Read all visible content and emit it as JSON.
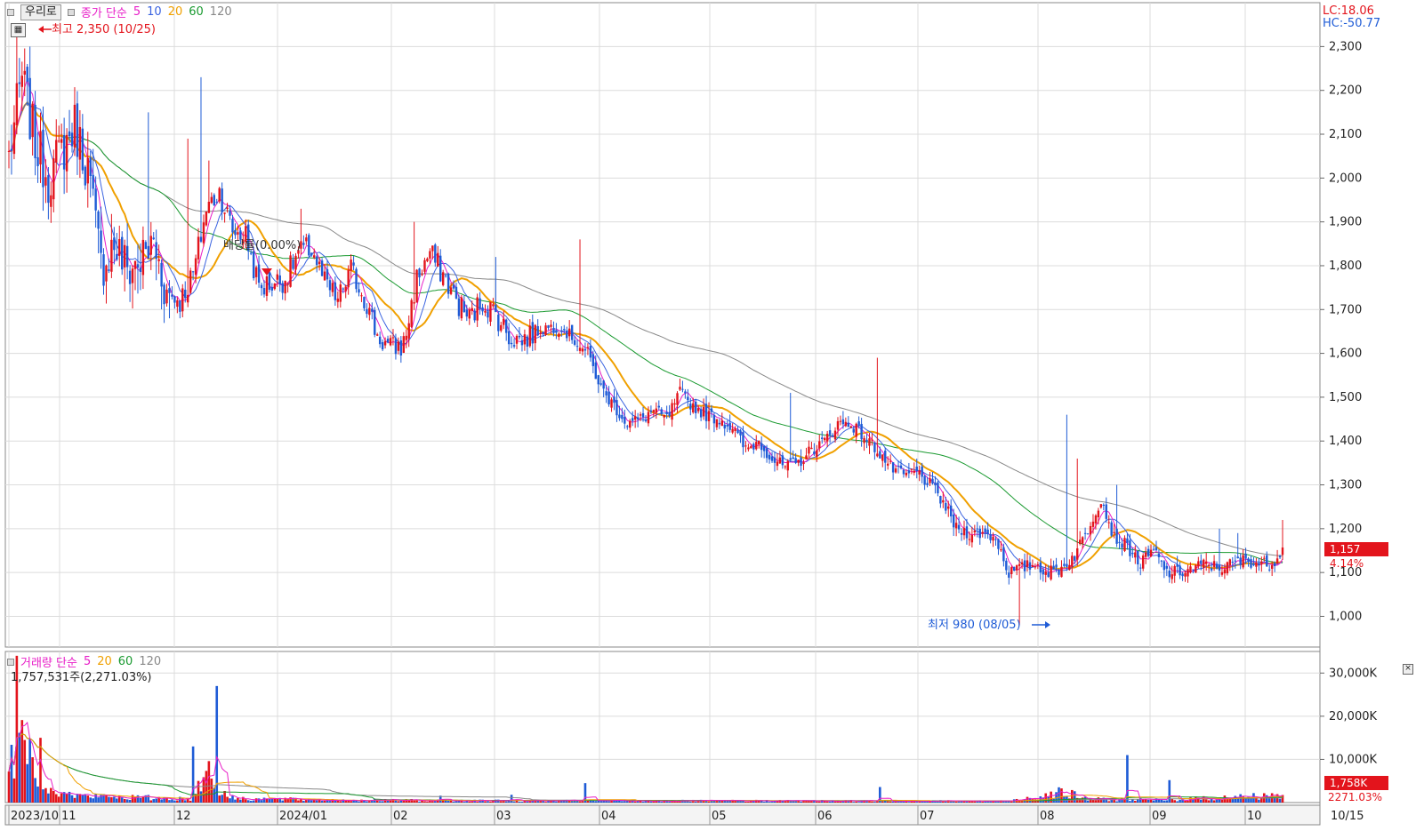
{
  "toolbar": {
    "name_button": "우리로"
  },
  "price_legend": {
    "label": "종가 단순",
    "p1": "5",
    "p2": "10",
    "p3": "20",
    "p4": "60",
    "p5": "120"
  },
  "volume_legend": {
    "label": "거래량 단순",
    "p1": "5",
    "p2": "20",
    "p3": "60",
    "p4": "120"
  },
  "volume_info": "1,757,531주(2,271.03%)",
  "high_label": "최고 2,350 (10/25)",
  "low_label": "최저 980 (08/05)",
  "dividend_label": "배당률(0.00%)",
  "lc_label": "LC:18.06",
  "hc_label": "HC:-50.77",
  "current_price": "1,157",
  "current_change": "4.14%",
  "current_volume": "1,758K",
  "current_volume_pct": "2271.03%",
  "colors": {
    "up": "#e3141c",
    "down": "#1e5bd6",
    "ma5": "#e81ec8",
    "ma10": "#3a63e0",
    "ma20": "#f0a000",
    "ma60": "#1a9a30",
    "ma120": "#888888"
  },
  "chart_data": [
    {
      "type": "candlestick",
      "ylim": [
        930,
        2390
      ],
      "yticks": [
        1000,
        1100,
        1200,
        1300,
        1400,
        1500,
        1600,
        1700,
        1800,
        1900,
        2000,
        2100,
        2200,
        2300
      ],
      "ytick_labels": [
        "1,000",
        "1,100",
        "1,200",
        "1,300",
        "1,400",
        "1,500",
        "1,600",
        "1,700",
        "1,800",
        "1,900",
        "2,000",
        "2,100",
        "2,200",
        "2,300"
      ],
      "x_labels": [
        "2023/10",
        "11",
        "12",
        "2024/01",
        "02",
        "03",
        "04",
        "05",
        "06",
        "07",
        "08",
        "09",
        "10",
        "10/15"
      ],
      "anchors": [
        [
          0,
          2050
        ],
        [
          5,
          2230
        ],
        [
          10,
          2080
        ],
        [
          15,
          2000
        ],
        [
          20,
          2060
        ],
        [
          25,
          2120
        ],
        [
          30,
          2020
        ],
        [
          35,
          1800
        ],
        [
          40,
          1850
        ],
        [
          45,
          1790
        ],
        [
          50,
          1810
        ],
        [
          55,
          1850
        ],
        [
          60,
          1740
        ],
        [
          65,
          1720
        ],
        [
          70,
          1780
        ],
        [
          75,
          1930
        ],
        [
          80,
          1970
        ],
        [
          85,
          1880
        ],
        [
          90,
          1870
        ],
        [
          95,
          1750
        ],
        [
          100,
          1760
        ],
        [
          105,
          1770
        ],
        [
          110,
          1830
        ],
        [
          115,
          1840
        ],
        [
          120,
          1760
        ],
        [
          125,
          1720
        ],
        [
          130,
          1790
        ],
        [
          135,
          1730
        ],
        [
          140,
          1640
        ],
        [
          145,
          1610
        ],
        [
          150,
          1620
        ],
        [
          155,
          1770
        ],
        [
          160,
          1830
        ],
        [
          165,
          1780
        ],
        [
          170,
          1720
        ],
        [
          175,
          1680
        ],
        [
          180,
          1720
        ],
        [
          185,
          1690
        ],
        [
          190,
          1640
        ],
        [
          195,
          1630
        ],
        [
          200,
          1650
        ],
        [
          205,
          1660
        ],
        [
          210,
          1660
        ],
        [
          215,
          1630
        ],
        [
          220,
          1600
        ],
        [
          225,
          1520
        ],
        [
          230,
          1480
        ],
        [
          235,
          1440
        ],
        [
          240,
          1450
        ],
        [
          245,
          1470
        ],
        [
          250,
          1450
        ],
        [
          255,
          1510
        ],
        [
          260,
          1480
        ],
        [
          265,
          1460
        ],
        [
          270,
          1450
        ],
        [
          275,
          1430
        ],
        [
          280,
          1380
        ],
        [
          285,
          1400
        ],
        [
          290,
          1360
        ],
        [
          295,
          1340
        ],
        [
          300,
          1350
        ],
        [
          305,
          1380
        ],
        [
          310,
          1400
        ],
        [
          315,
          1440
        ],
        [
          320,
          1440
        ],
        [
          325,
          1410
        ],
        [
          330,
          1380
        ],
        [
          335,
          1340
        ],
        [
          340,
          1320
        ],
        [
          345,
          1330
        ],
        [
          350,
          1300
        ],
        [
          355,
          1260
        ],
        [
          360,
          1200
        ],
        [
          365,
          1190
        ],
        [
          370,
          1190
        ],
        [
          375,
          1180
        ],
        [
          380,
          1100
        ],
        [
          385,
          1110
        ],
        [
          390,
          1120
        ],
        [
          395,
          1100
        ],
        [
          400,
          1110
        ],
        [
          405,
          1140
        ],
        [
          410,
          1200
        ],
        [
          415,
          1270
        ],
        [
          420,
          1180
        ],
        [
          425,
          1160
        ],
        [
          430,
          1120
        ],
        [
          435,
          1150
        ],
        [
          440,
          1100
        ],
        [
          445,
          1100
        ],
        [
          450,
          1110
        ],
        [
          455,
          1120
        ],
        [
          460,
          1110
        ],
        [
          465,
          1120
        ],
        [
          470,
          1130
        ],
        [
          475,
          1120
        ],
        [
          480,
          1120
        ],
        [
          484,
          1157
        ]
      ],
      "spikes": [
        [
          3,
          2350
        ],
        [
          6,
          2280
        ],
        [
          8,
          2300
        ],
        [
          53,
          2150
        ],
        [
          61,
          1680
        ],
        [
          68,
          2090
        ],
        [
          73,
          2230
        ],
        [
          76,
          2040
        ],
        [
          111,
          1930
        ],
        [
          154,
          1900
        ],
        [
          185,
          1820
        ],
        [
          217,
          1860
        ],
        [
          297,
          1510
        ],
        [
          330,
          1590
        ],
        [
          384,
          980
        ],
        [
          402,
          1460
        ],
        [
          406,
          1360
        ],
        [
          421,
          1300
        ],
        [
          460,
          1200
        ],
        [
          467,
          1190
        ],
        [
          484,
          1220
        ]
      ],
      "ma_visible": {
        "ma120_start": 0
      },
      "high": {
        "index": 10,
        "value": 2350,
        "date": "10/25"
      },
      "low": {
        "index": 395,
        "value": 980,
        "date": "08/05"
      },
      "last": {
        "value": 1157,
        "change_pct": 4.14
      }
    },
    {
      "type": "bar",
      "name": "volume",
      "ylim": [
        0,
        35000
      ],
      "yticks": [
        10000,
        20000,
        30000
      ],
      "ytick_labels": [
        "10,000K",
        "20,000K",
        "30,000K"
      ],
      "anchors": [
        [
          0,
          8000
        ],
        [
          5,
          12000
        ],
        [
          10,
          10000
        ],
        [
          15,
          5000
        ],
        [
          20,
          2000
        ],
        [
          30,
          1500
        ],
        [
          60,
          1000
        ],
        [
          70,
          800
        ],
        [
          75,
          9000
        ],
        [
          78,
          4000
        ],
        [
          85,
          1000
        ],
        [
          120,
          600
        ],
        [
          200,
          400
        ],
        [
          300,
          400
        ],
        [
          380,
          350
        ],
        [
          400,
          2500
        ],
        [
          410,
          800
        ],
        [
          440,
          600
        ],
        [
          484,
          1758
        ]
      ],
      "spikes": [
        [
          3,
          34000
        ],
        [
          12,
          15000
        ],
        [
          70,
          13000
        ],
        [
          79,
          27000
        ],
        [
          164,
          1600
        ],
        [
          191,
          1800
        ],
        [
          219,
          4500
        ],
        [
          331,
          3600
        ],
        [
          425,
          11000
        ],
        [
          441,
          5200
        ],
        [
          484,
          1758
        ]
      ],
      "last": {
        "value_k": 1758,
        "pct": 2271.03
      }
    }
  ]
}
